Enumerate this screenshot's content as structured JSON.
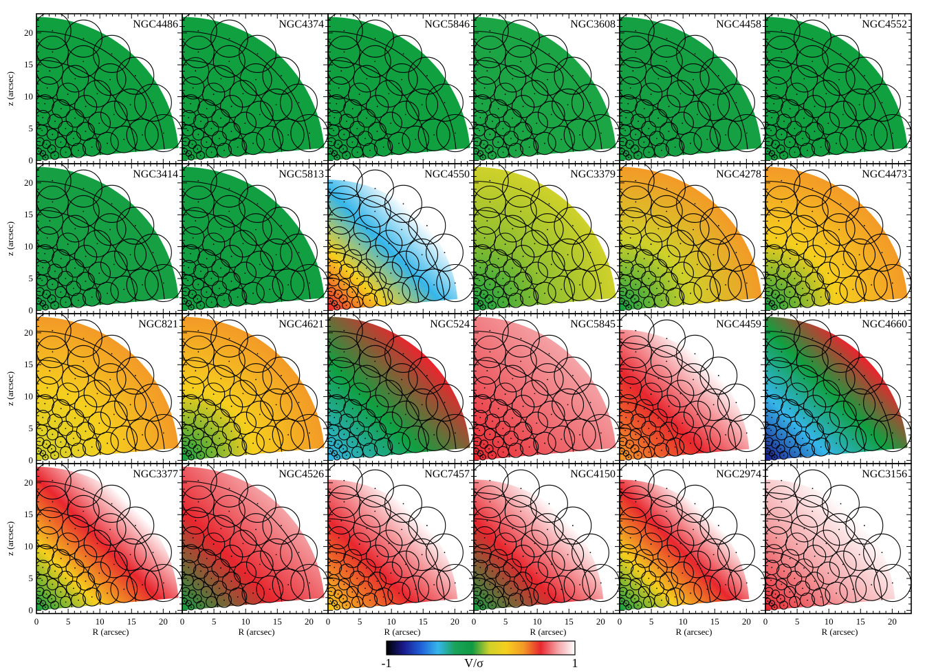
{
  "chart_data": {
    "type": "heatmap",
    "description_panels": "24 quarter-sector V/sigma maps of early-type galaxies arranged in 4 rows x 6 columns",
    "xlabel": "R (arcsec)",
    "ylabel": "z (arcsec)",
    "xlim": [
      0,
      23
    ],
    "ylim": [
      -0.5,
      23
    ],
    "xticks": [
      0,
      5,
      10,
      15,
      20
    ],
    "yticks": [
      0,
      5,
      10,
      15,
      20
    ],
    "colorbar": {
      "label": "V/σ",
      "min_label": "-1",
      "max_label": "1",
      "range": [
        -1,
        1
      ],
      "colors": [
        "#000000",
        "#1a1a8c",
        "#1f5fd8",
        "#35b6ea",
        "#1aa35a",
        "#0f9a43",
        "#cfd12a",
        "#f6cf1e",
        "#f39a27",
        "#e8262e",
        "#f4a3a6",
        "#ffffff"
      ]
    },
    "panels": [
      {
        "name": "NGC4486",
        "row": 0,
        "col": 0,
        "outer_radius": 22.5,
        "pattern": "uniform",
        "colors": [
          "#10a040"
        ]
      },
      {
        "name": "NGC4374",
        "row": 0,
        "col": 1,
        "outer_radius": 22.5,
        "pattern": "uniform",
        "colors": [
          "#10a040"
        ]
      },
      {
        "name": "NGC5846",
        "row": 0,
        "col": 2,
        "outer_radius": 22.5,
        "pattern": "uniform",
        "colors": [
          "#10a040"
        ]
      },
      {
        "name": "NGC3608",
        "row": 0,
        "col": 3,
        "outer_radius": 22.5,
        "pattern": "uniform",
        "colors": [
          "#1ba545"
        ]
      },
      {
        "name": "NGC4458",
        "row": 0,
        "col": 4,
        "outer_radius": 22.5,
        "pattern": "uniform",
        "colors": [
          "#14a043"
        ]
      },
      {
        "name": "NGC4552",
        "row": 0,
        "col": 5,
        "outer_radius": 22.5,
        "pattern": "uniform",
        "colors": [
          "#10a040"
        ]
      },
      {
        "name": "NGC3414",
        "row": 1,
        "col": 0,
        "outer_radius": 22.5,
        "pattern": "uniform",
        "colors": [
          "#16a043"
        ]
      },
      {
        "name": "NGC5813",
        "row": 1,
        "col": 1,
        "outer_radius": 22.5,
        "pattern": "uniform",
        "colors": [
          "#129f42"
        ]
      },
      {
        "name": "NGC4550",
        "row": 1,
        "col": 2,
        "outer_radius": 20.5,
        "pattern": "mixed",
        "colors": [
          "#e8262e",
          "#f6cf1e",
          "#35b6ea",
          "#ffffff"
        ]
      },
      {
        "name": "NGC3379",
        "row": 1,
        "col": 3,
        "outer_radius": 22.5,
        "pattern": "radial",
        "colors": [
          "#10a040",
          "#8fbf30",
          "#cfd12a"
        ]
      },
      {
        "name": "NGC4278",
        "row": 1,
        "col": 4,
        "outer_radius": 22.5,
        "pattern": "radial",
        "colors": [
          "#10a040",
          "#cfd12a",
          "#f39a27"
        ]
      },
      {
        "name": "NGC4473",
        "row": 1,
        "col": 5,
        "outer_radius": 22.5,
        "pattern": "radial",
        "colors": [
          "#10a040",
          "#f6cf1e",
          "#f39a27"
        ]
      },
      {
        "name": "NGC821",
        "row": 2,
        "col": 0,
        "outer_radius": 22.5,
        "pattern": "radial",
        "colors": [
          "#cfd12a",
          "#f6cf1e",
          "#f39a27"
        ]
      },
      {
        "name": "NGC4621",
        "row": 2,
        "col": 1,
        "outer_radius": 22.5,
        "pattern": "radial",
        "colors": [
          "#10a040",
          "#f6cf1e",
          "#f39a27"
        ]
      },
      {
        "name": "NGC524",
        "row": 2,
        "col": 2,
        "outer_radius": 22.5,
        "pattern": "mixed",
        "colors": [
          "#35b6ea",
          "#10a040",
          "#e8262e"
        ]
      },
      {
        "name": "NGC5845",
        "row": 2,
        "col": 3,
        "outer_radius": 22.5,
        "pattern": "mixed",
        "colors": [
          "#e8262e",
          "#f4a3a6"
        ]
      },
      {
        "name": "NGC4459",
        "row": 2,
        "col": 4,
        "outer_radius": 20.5,
        "pattern": "mixed",
        "colors": [
          "#f39a27",
          "#e8262e",
          "#ffffff"
        ]
      },
      {
        "name": "NGC4660",
        "row": 2,
        "col": 5,
        "outer_radius": 22.5,
        "pattern": "mixed",
        "colors": [
          "#1a1a8c",
          "#35b6ea",
          "#10a040",
          "#e8262e"
        ]
      },
      {
        "name": "NGC3377",
        "row": 3,
        "col": 0,
        "outer_radius": 22.5,
        "pattern": "mixed",
        "colors": [
          "#10a040",
          "#f6cf1e",
          "#e8262e",
          "#ffffff"
        ]
      },
      {
        "name": "NGC4526",
        "row": 3,
        "col": 1,
        "outer_radius": 22.5,
        "pattern": "mixed",
        "colors": [
          "#10a040",
          "#e8262e",
          "#f4a3a6"
        ]
      },
      {
        "name": "NGC7457",
        "row": 3,
        "col": 2,
        "outer_radius": 20.5,
        "pattern": "mixed",
        "colors": [
          "#f6cf1e",
          "#e8262e",
          "#ffffff"
        ]
      },
      {
        "name": "NGC4150",
        "row": 3,
        "col": 3,
        "outer_radius": 20.5,
        "pattern": "mixed",
        "colors": [
          "#10a040",
          "#e8262e",
          "#ffffff"
        ]
      },
      {
        "name": "NGC2974",
        "row": 3,
        "col": 4,
        "outer_radius": 20.5,
        "pattern": "mixed",
        "colors": [
          "#10a040",
          "#f6cf1e",
          "#e8262e",
          "#ffffff"
        ]
      },
      {
        "name": "NGC3156",
        "row": 3,
        "col": 5,
        "outer_radius": 20.5,
        "pattern": "mixed",
        "colors": [
          "#e8262e",
          "#f4a3a6",
          "#ffffff"
        ]
      }
    ]
  }
}
